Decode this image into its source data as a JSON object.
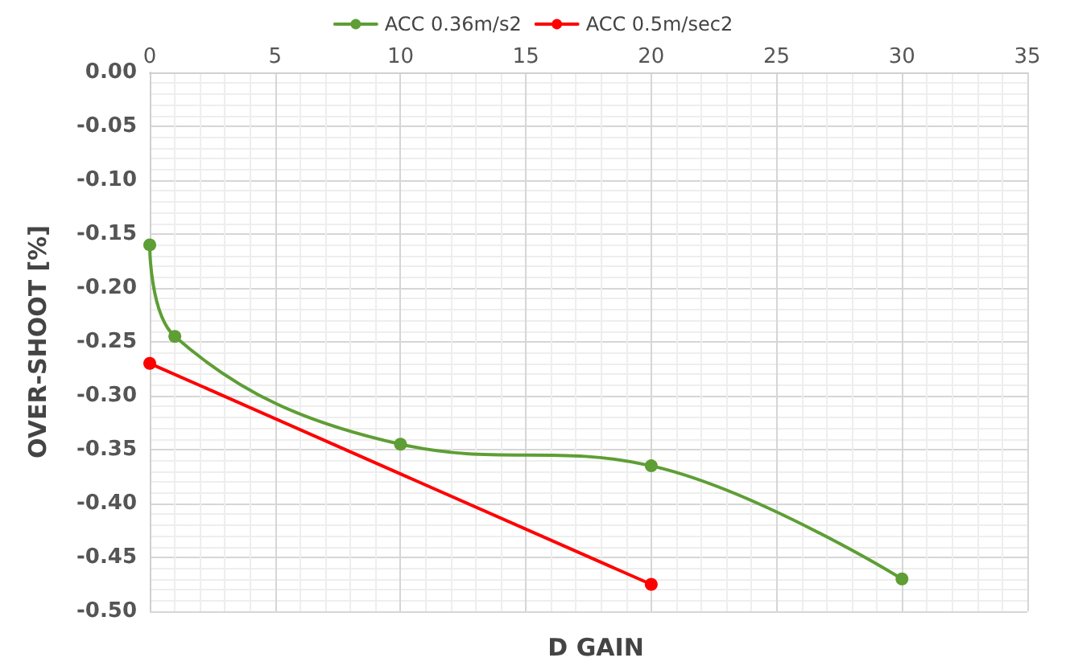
{
  "chart_data": {
    "type": "line",
    "xlabel": "D GAIN",
    "ylabel": "OVER-SHOOT [%]",
    "series": [
      {
        "name": "ACC 0.36m/s2",
        "color": "#5e9e35",
        "x": [
          0,
          1,
          10,
          20,
          30
        ],
        "values": [
          -0.16,
          -0.245,
          -0.345,
          -0.365,
          -0.47
        ]
      },
      {
        "name": "ACC 0.5m/sec2",
        "color": "#ff0000",
        "x": [
          0,
          20
        ],
        "values": [
          -0.27,
          -0.475
        ]
      }
    ],
    "xlim": [
      0,
      35
    ],
    "xticks": [
      0,
      5,
      10,
      15,
      20,
      25,
      30,
      35
    ],
    "ylim": [
      -0.5,
      0
    ],
    "yticks": [
      {
        "value": -0.5,
        "label": "-0.50"
      },
      {
        "value": -0.45,
        "label": "-0.45"
      },
      {
        "value": -0.4,
        "label": "-0.40"
      },
      {
        "value": -0.35,
        "label": "-0.35"
      },
      {
        "value": -0.3,
        "label": "-0.30"
      },
      {
        "value": -0.25,
        "label": "-0.25"
      },
      {
        "value": -0.2,
        "label": "-0.20"
      },
      {
        "value": -0.15,
        "label": "-0.15"
      },
      {
        "value": -0.1,
        "label": "-0.10"
      },
      {
        "value": -0.05,
        "label": "-0.05"
      },
      {
        "value": 0,
        "label": "0.00"
      }
    ],
    "grid": true,
    "legend": "top",
    "marker": "circle",
    "line_style": "solid"
  }
}
